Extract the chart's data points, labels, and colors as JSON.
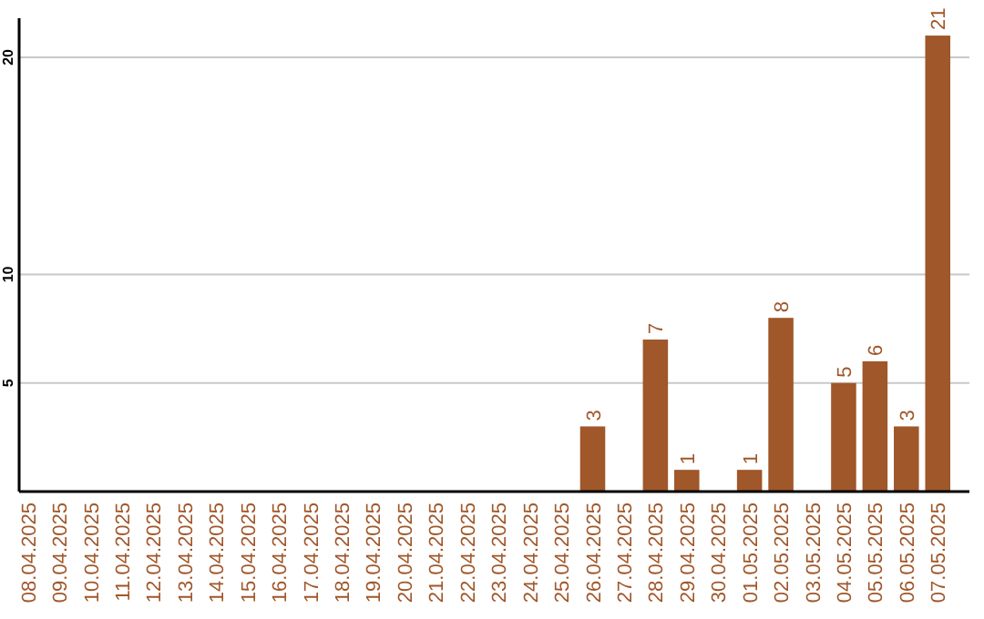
{
  "chart_data": {
    "type": "bar",
    "categories": [
      "08.04.2025",
      "09.04.2025",
      "10.04.2025",
      "11.04.2025",
      "12.04.2025",
      "13.04.2025",
      "14.04.2025",
      "15.04.2025",
      "16.04.2025",
      "17.04.2025",
      "18.04.2025",
      "19.04.2025",
      "20.04.2025",
      "21.04.2025",
      "22.04.2025",
      "23.04.2025",
      "24.04.2025",
      "25.04.2025",
      "26.04.2025",
      "27.04.2025",
      "28.04.2025",
      "29.04.2025",
      "30.04.2025",
      "01.05.2025",
      "02.05.2025",
      "03.05.2025",
      "04.05.2025",
      "05.05.2025",
      "06.05.2025",
      "07.05.2025"
    ],
    "values": [
      0,
      0,
      0,
      0,
      0,
      0,
      0,
      0,
      0,
      0,
      0,
      0,
      0,
      0,
      0,
      0,
      0,
      0,
      3,
      0,
      7,
      1,
      0,
      1,
      8,
      0,
      5,
      6,
      3,
      21
    ],
    "value_labels": [
      null,
      null,
      null,
      null,
      null,
      null,
      null,
      null,
      null,
      null,
      null,
      null,
      null,
      null,
      null,
      null,
      null,
      null,
      "3",
      null,
      "7",
      "1",
      null,
      "1",
      "8",
      null,
      "5",
      "6",
      "3",
      "21"
    ],
    "color": "#a0572a",
    "ylim": [
      0,
      21.8
    ],
    "yticks": [
      5,
      10,
      20
    ],
    "grid": "y"
  }
}
